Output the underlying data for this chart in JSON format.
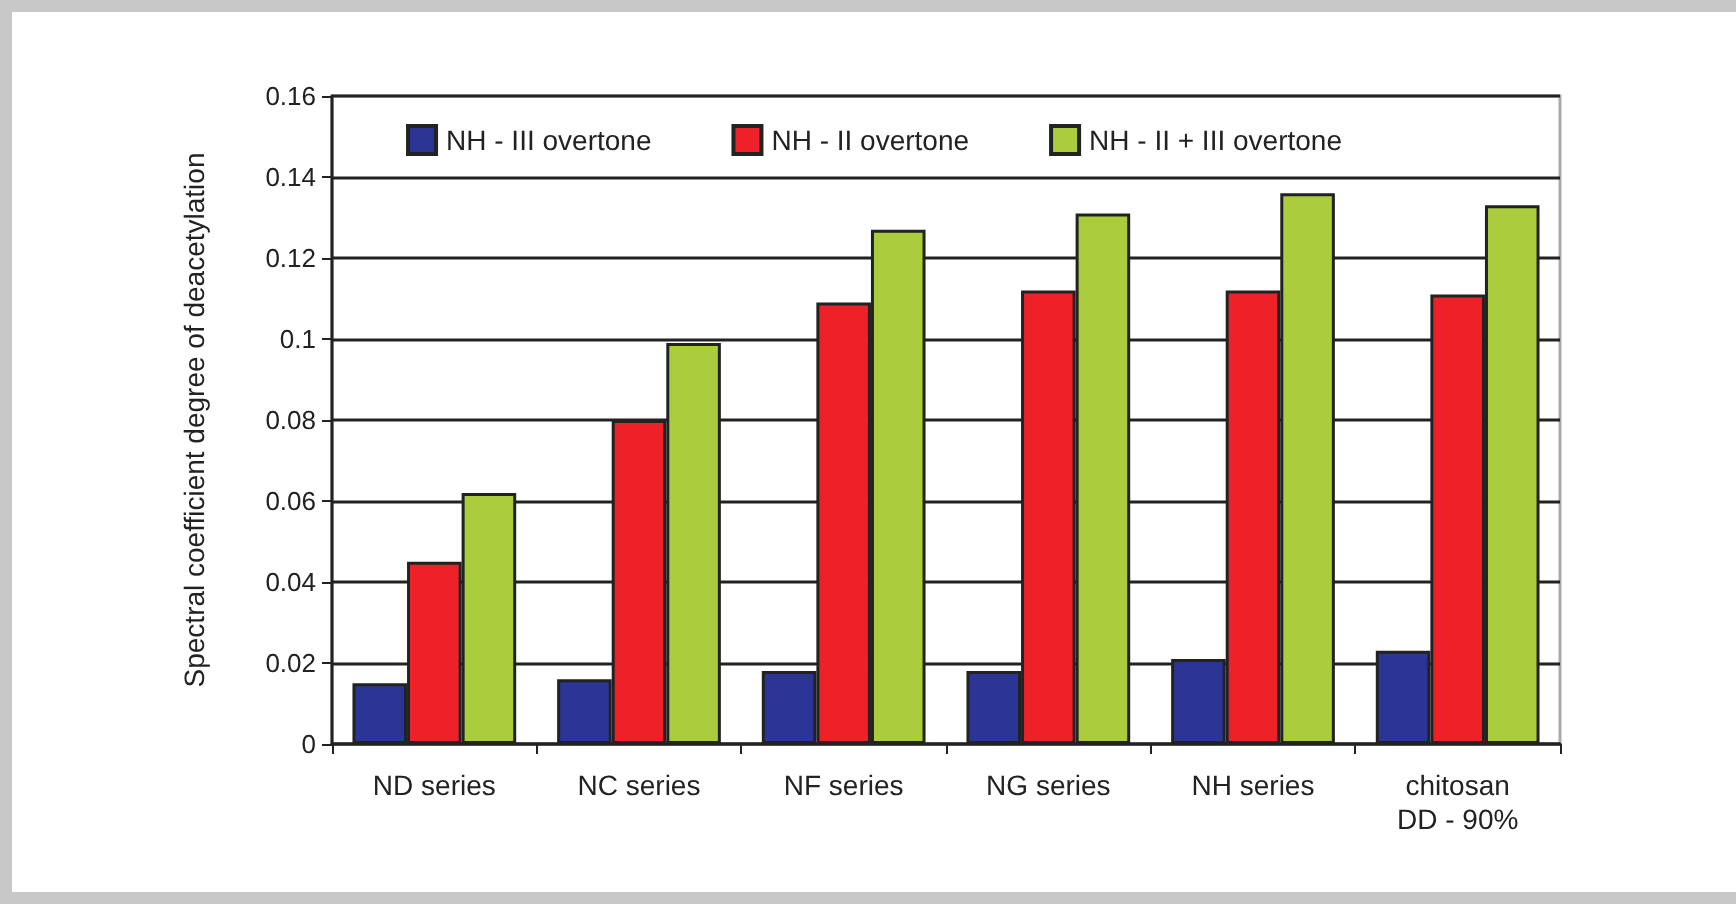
{
  "chart_data": {
    "type": "bar",
    "ylabel": "Spectral coefficient degree of deacetylation",
    "categories": [
      "ND series",
      "NC series",
      "NF series",
      "NG series",
      "NH series",
      "chitosan\nDD - 90%"
    ],
    "series": [
      {
        "name": "NH - III overtone",
        "color": "#2b3595",
        "values": [
          0.015,
          0.016,
          0.018,
          0.018,
          0.021,
          0.023
        ]
      },
      {
        "name": "NH - II overtone",
        "color": "#ee2129",
        "values": [
          0.045,
          0.08,
          0.109,
          0.112,
          0.112,
          0.111
        ]
      },
      {
        "name": "NH - II + III overtone",
        "color": "#abcc3c",
        "values": [
          0.062,
          0.099,
          0.127,
          0.131,
          0.136,
          0.133
        ]
      }
    ],
    "ylim": [
      0,
      0.16
    ],
    "yticks": [
      0,
      0.02,
      0.04,
      0.06,
      0.08,
      0.1,
      0.12,
      0.14,
      0.16
    ],
    "grid": "y",
    "legend": "top"
  }
}
